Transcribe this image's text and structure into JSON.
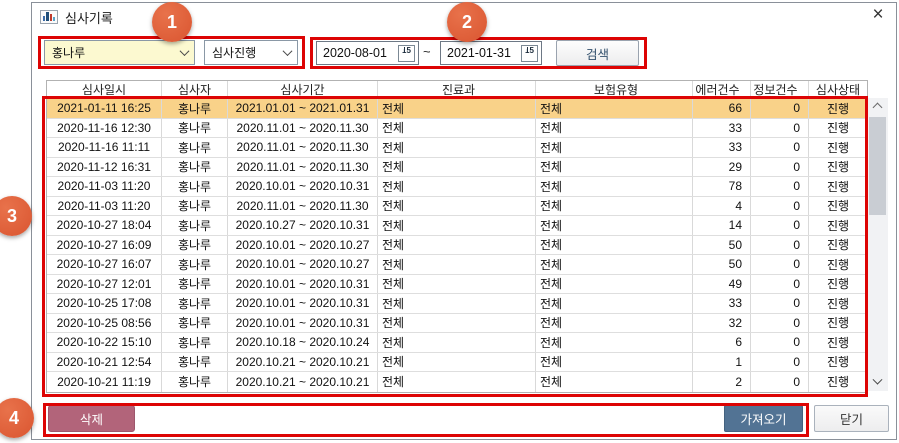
{
  "window": {
    "title": "심사기록",
    "close_glyph": "×"
  },
  "filters": {
    "auditor_combo": {
      "value": "홍나루"
    },
    "status_combo": {
      "value": "심사진행"
    },
    "date_from": "2020-08-01",
    "date_to": "2021-01-31",
    "range_separator": "~",
    "calendar_day": "15",
    "search_label": "검색"
  },
  "table": {
    "columns": [
      "심사일시",
      "심사자",
      "심사기간",
      "진료과",
      "보험유형",
      "에러건수",
      "정보건수",
      "심사상태"
    ],
    "selected_row_index": 0,
    "rows": [
      [
        "2021-01-11 16:25",
        "홍나루",
        "2021.01.01 ~ 2021.01.31",
        "전체",
        "전체",
        "66",
        "0",
        "진행"
      ],
      [
        "2020-11-16 12:30",
        "홍나루",
        "2020.11.01 ~ 2020.11.30",
        "전체",
        "전체",
        "33",
        "0",
        "진행"
      ],
      [
        "2020-11-16 11:11",
        "홍나루",
        "2020.11.01 ~ 2020.11.30",
        "전체",
        "전체",
        "33",
        "0",
        "진행"
      ],
      [
        "2020-11-12 16:31",
        "홍나루",
        "2020.11.01 ~ 2020.11.30",
        "전체",
        "전체",
        "29",
        "0",
        "진행"
      ],
      [
        "2020-11-03 11:20",
        "홍나루",
        "2020.10.01 ~ 2020.10.31",
        "전체",
        "전체",
        "78",
        "0",
        "진행"
      ],
      [
        "2020-11-03 11:20",
        "홍나루",
        "2020.11.01 ~ 2020.11.30",
        "전체",
        "전체",
        "4",
        "0",
        "진행"
      ],
      [
        "2020-10-27 18:04",
        "홍나루",
        "2020.10.27 ~ 2020.10.31",
        "전체",
        "전체",
        "14",
        "0",
        "진행"
      ],
      [
        "2020-10-27 16:09",
        "홍나루",
        "2020.10.01 ~ 2020.10.27",
        "전체",
        "전체",
        "50",
        "0",
        "진행"
      ],
      [
        "2020-10-27 16:07",
        "홍나루",
        "2020.10.01 ~ 2020.10.27",
        "전체",
        "전체",
        "50",
        "0",
        "진행"
      ],
      [
        "2020-10-27 12:01",
        "홍나루",
        "2020.10.01 ~ 2020.10.31",
        "전체",
        "전체",
        "49",
        "0",
        "진행"
      ],
      [
        "2020-10-25 17:08",
        "홍나루",
        "2020.10.01 ~ 2020.10.31",
        "전체",
        "전체",
        "33",
        "0",
        "진행"
      ],
      [
        "2020-10-25 08:56",
        "홍나루",
        "2020.10.01 ~ 2020.10.31",
        "전체",
        "전체",
        "32",
        "0",
        "진행"
      ],
      [
        "2020-10-22 15:10",
        "홍나루",
        "2020.10.18 ~ 2020.10.24",
        "전체",
        "전체",
        "6",
        "0",
        "진행"
      ],
      [
        "2020-10-21 12:54",
        "홍나루",
        "2020.10.21 ~ 2020.10.21",
        "전체",
        "전체",
        "1",
        "0",
        "진행"
      ],
      [
        "2020-10-21 11:19",
        "홍나루",
        "2020.10.21 ~ 2020.10.21",
        "전체",
        "전체",
        "2",
        "0",
        "진행"
      ]
    ]
  },
  "footer": {
    "delete_label": "삭제",
    "import_label": "가져오기",
    "close_label": "닫기"
  },
  "annotations": {
    "step1": "1",
    "step2": "2",
    "step3": "3",
    "step4": "4"
  },
  "colors": {
    "annotation_red": "#dd0404",
    "annotation_orange": "#dd5a33",
    "row_highlight": "#f9d289",
    "combo_yellow": "#fcf9d0",
    "delete_button": "#b2647a",
    "import_button": "#527394"
  }
}
